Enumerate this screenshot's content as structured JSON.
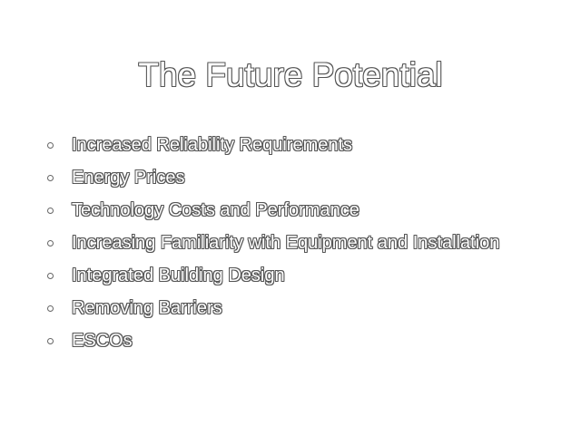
{
  "slide": {
    "title": "The Future Potential",
    "bullets": [
      "Increased Reliability Requirements",
      "Energy Prices",
      "Technology Costs and Performance",
      "Increasing Familiarity with Equipment and Installation",
      "Integrated Building Design",
      "Removing Barriers",
      "ESCOs"
    ]
  }
}
